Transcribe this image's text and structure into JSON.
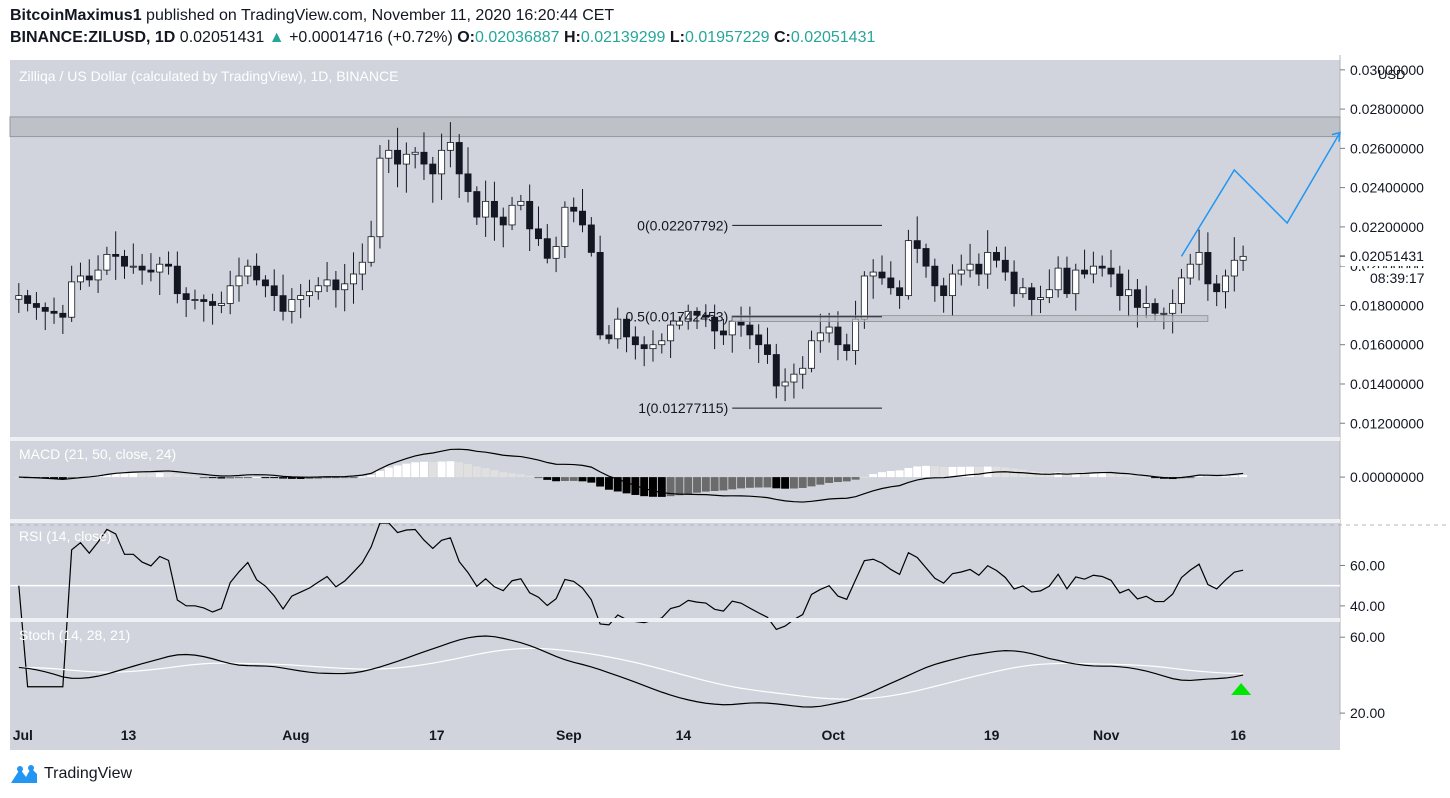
{
  "header": {
    "author": "BitcoinMaximus1",
    "published_text": "published on TradingView.com, November 11, 2020 16:20:44 CET",
    "symbol": "BINANCE:ZILUSD, 1D",
    "last_price": "0.02051431",
    "change": "+0.00014716 (+0.72%)",
    "open_label": "O:",
    "open": "0.02036887",
    "high_label": "H:",
    "high": "0.02139299",
    "low_label": "L:",
    "low": "0.01957229",
    "close_label": "C:",
    "close": "0.02051431"
  },
  "footer": {
    "brand": "TradingView",
    "logo_icon": "tradingview-logo-icon"
  },
  "colors": {
    "background": "#d1d4dc",
    "candle_up": "#ffffff",
    "candle_down": "#131722",
    "projection": "#2196f3",
    "signal_arrow": "#00e600"
  },
  "chart_data": {
    "type": "candlestick",
    "title": "Zilliqa / US Dollar (calculated by TradingView), 1D, BINANCE",
    "currency": "USD",
    "price_axis": {
      "range": [
        0.0113,
        0.0305
      ],
      "ticks": [
        0.012,
        0.014,
        0.016,
        0.018,
        0.02,
        0.022,
        0.024,
        0.026,
        0.028,
        0.03
      ],
      "tick_labels": [
        "0.01200000",
        "0.01400000",
        "0.01600000",
        "0.01800000",
        "0.02000000",
        "0.02200000",
        "0.02400000",
        "0.02600000",
        "0.02800000",
        "0.03000000"
      ]
    },
    "current_price_label": "0.02051431",
    "countdown_label": "08:39:17",
    "x_axis_labels": [
      {
        "label": "Jul",
        "day": 0
      },
      {
        "label": "13",
        "day": 12
      },
      {
        "label": "Aug",
        "day": 31
      },
      {
        "label": "17",
        "day": 47
      },
      {
        "label": "Sep",
        "day": 62
      },
      {
        "label": "14",
        "day": 75
      },
      {
        "label": "Oct",
        "day": 92
      },
      {
        "label": "19",
        "day": 110
      },
      {
        "label": "Nov",
        "day": 123
      },
      {
        "label": "16",
        "day": 138
      }
    ],
    "x_range_days": [
      -1,
      150
    ],
    "resistance_zone": [
      0.0266,
      0.0276
    ],
    "support_zone": [
      0.01718,
      0.01748
    ],
    "fibonacci": {
      "levels": [
        {
          "label": "0(0.02207792)",
          "price": 0.02207792
        },
        {
          "label": "0.5(0.01742453)",
          "price": 0.01742453
        },
        {
          "label": "1(0.01277115)",
          "price": 0.01277115
        }
      ],
      "day_range": [
        81,
        98
      ]
    },
    "projection": {
      "days": [
        132,
        138,
        144,
        150
      ],
      "prices": [
        0.0205,
        0.0249,
        0.0222,
        0.0268
      ]
    },
    "closes": [
      0.0185,
      0.0181,
      0.0179,
      0.0177,
      0.0176,
      0.0174,
      0.0192,
      0.0195,
      0.0193,
      0.0198,
      0.0206,
      0.0205,
      0.02,
      0.02,
      0.0198,
      0.0197,
      0.0201,
      0.02,
      0.0186,
      0.0183,
      0.0183,
      0.0182,
      0.018,
      0.0181,
      0.019,
      0.0195,
      0.02,
      0.0193,
      0.019,
      0.0185,
      0.0177,
      0.0183,
      0.0185,
      0.0187,
      0.019,
      0.0193,
      0.0188,
      0.0191,
      0.0196,
      0.0202,
      0.0215,
      0.0255,
      0.0259,
      0.0252,
      0.0257,
      0.0258,
      0.0252,
      0.0247,
      0.0259,
      0.0263,
      0.0247,
      0.0238,
      0.0225,
      0.0233,
      0.0225,
      0.0221,
      0.0231,
      0.0233,
      0.0219,
      0.0214,
      0.0204,
      0.021,
      0.023,
      0.0228,
      0.0221,
      0.0207,
      0.0165,
      0.0163,
      0.0173,
      0.0164,
      0.016,
      0.0158,
      0.016,
      0.0162,
      0.017,
      0.0172,
      0.0177,
      0.0175,
      0.0174,
      0.0167,
      0.0165,
      0.0172,
      0.017,
      0.0165,
      0.016,
      0.0155,
      0.0139,
      0.0141,
      0.0145,
      0.0148,
      0.0162,
      0.0166,
      0.0169,
      0.016,
      0.0157,
      0.0173,
      0.0195,
      0.0197,
      0.0194,
      0.0189,
      0.0185,
      0.0213,
      0.0209,
      0.02,
      0.019,
      0.0185,
      0.0196,
      0.0198,
      0.0201,
      0.0196,
      0.0207,
      0.0203,
      0.0197,
      0.0186,
      0.0189,
      0.0183,
      0.0184,
      0.0188,
      0.0199,
      0.0186,
      0.0198,
      0.0196,
      0.02,
      0.0199,
      0.0196,
      0.0185,
      0.0188,
      0.0179,
      0.0181,
      0.0176,
      0.0176,
      0.0181,
      0.0194,
      0.0201,
      0.0207,
      0.0191,
      0.0187,
      0.0195,
      0.0203,
      0.0205
    ],
    "panes": [
      {
        "name": "MACD",
        "label": "MACD (21, 50, close, 24)",
        "tick_labels": [
          "0.00000000"
        ],
        "range": [
          -0.0029,
          0.0025
        ],
        "zero": 0
      },
      {
        "name": "RSI",
        "label": "RSI (14, close)",
        "tick_labels": [
          "40.00",
          "60.00"
        ],
        "range": [
          34,
          81
        ],
        "level_line": 50,
        "upper_dashed": 80
      },
      {
        "name": "Stoch",
        "label": "Stoch (14, 28, 21)",
        "tick_labels": [
          "20.00",
          "60.00"
        ],
        "range": [
          19,
          68
        ],
        "k_color": "#000000",
        "d_color": "#ffffff",
        "signal": "bullish-cross"
      }
    ]
  }
}
